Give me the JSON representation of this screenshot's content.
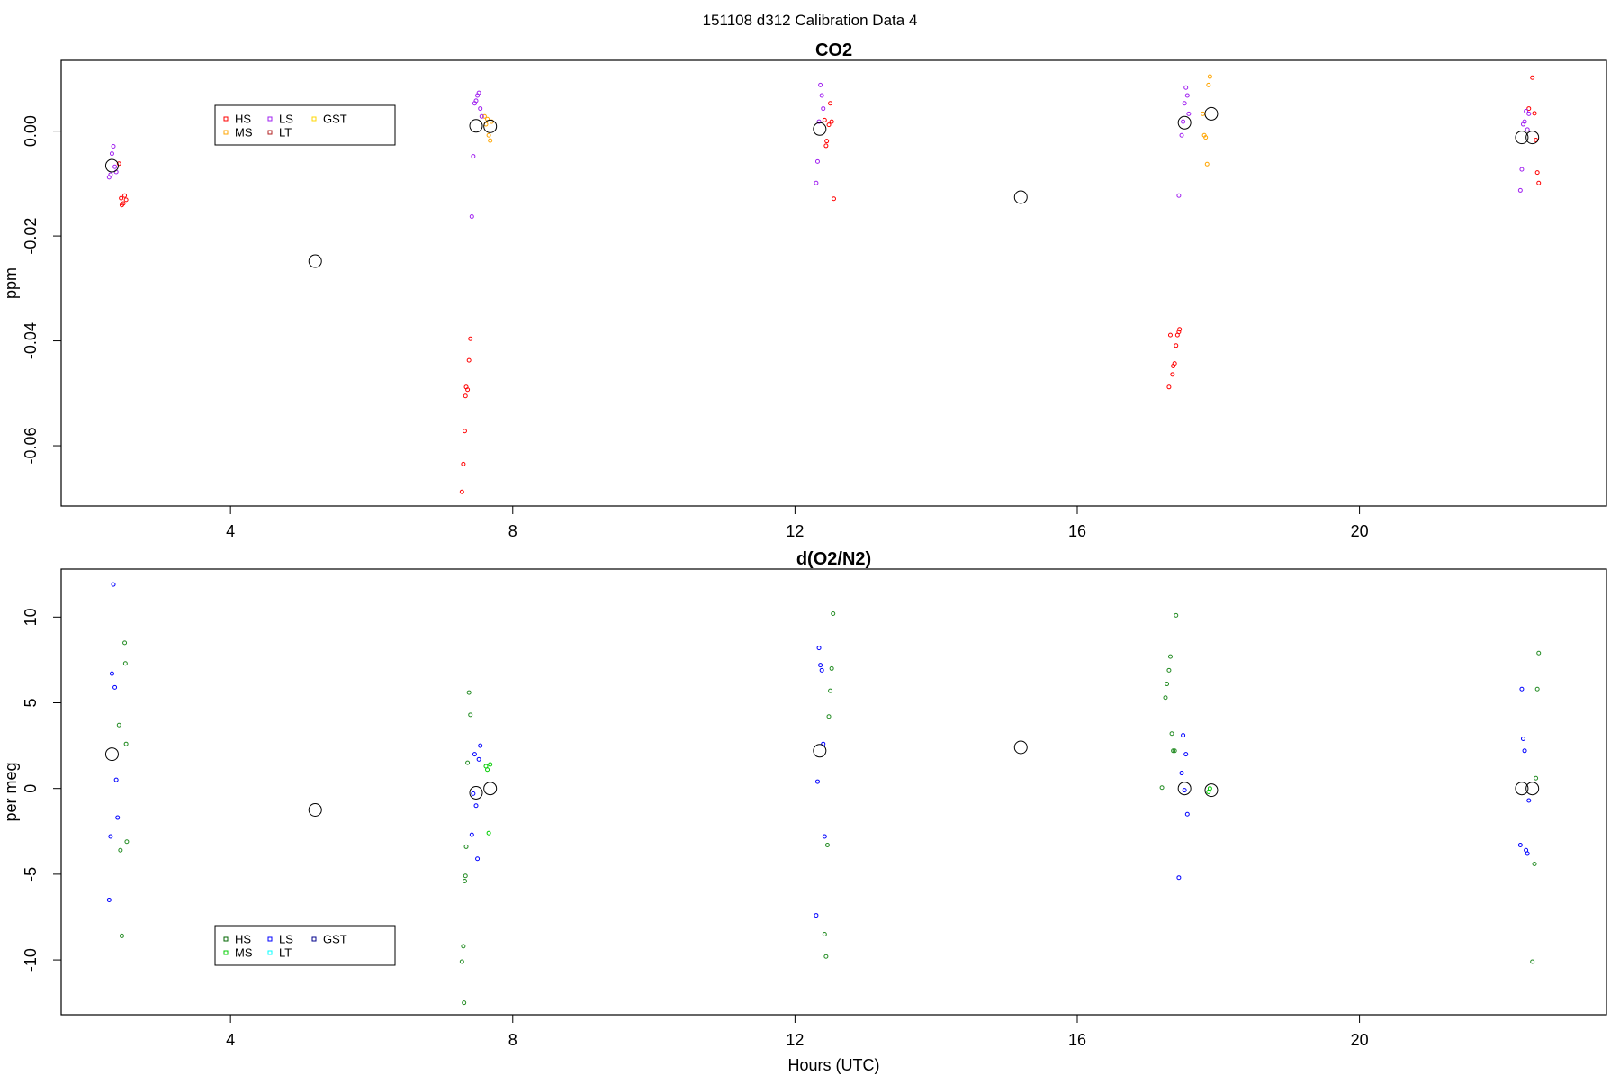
{
  "page_title": "151108   d312   Calibration Data 4",
  "colors": {
    "axis": "#000000",
    "open_circle": "#000000"
  },
  "chart_data": [
    {
      "type": "scatter",
      "title": "CO2",
      "xlabel": "",
      "ylabel": "ppm",
      "xlim": [
        1.6,
        23.5
      ],
      "ylim": [
        -0.0715,
        0.0135
      ],
      "x_ticks": [
        4,
        8,
        12,
        16,
        20
      ],
      "y_ticks": [
        -0.06,
        -0.04,
        -0.02,
        0.0
      ],
      "y_tick_labels": [
        "-0.06",
        "-0.04",
        "-0.02",
        "0.00"
      ],
      "legend": {
        "placement": "top-left",
        "entries": [
          {
            "label": "HS",
            "color": "#ff0000"
          },
          {
            "label": "MS",
            "color": "#ffa500"
          },
          {
            "label": "LS",
            "color": "#a020f0"
          },
          {
            "label": "LT",
            "color": "#b22222"
          },
          {
            "label": "GST",
            "color": "#ffd700"
          }
        ]
      },
      "series": [
        {
          "color": "#ff0000",
          "points": [
            [
              2.42,
              -0.0062
            ],
            [
              2.45,
              -0.0128
            ],
            [
              2.48,
              -0.0138
            ],
            [
              2.5,
              -0.0123
            ],
            [
              2.52,
              -0.0131
            ],
            [
              2.46,
              -0.0141
            ],
            [
              7.28,
              -0.0688
            ],
            [
              7.3,
              -0.0635
            ],
            [
              7.32,
              -0.0572
            ],
            [
              7.33,
              -0.0505
            ],
            [
              7.34,
              -0.0488
            ],
            [
              7.36,
              -0.0493
            ],
            [
              7.38,
              -0.0437
            ],
            [
              7.4,
              -0.0396
            ],
            [
              12.42,
              0.0021
            ],
            [
              12.44,
              -0.0028
            ],
            [
              12.45,
              -0.0019
            ],
            [
              12.48,
              0.0012
            ],
            [
              12.5,
              0.0053
            ],
            [
              12.52,
              0.0018
            ],
            [
              12.55,
              -0.0129
            ],
            [
              17.3,
              -0.0488
            ],
            [
              17.32,
              -0.0389
            ],
            [
              17.35,
              -0.0464
            ],
            [
              17.36,
              -0.0448
            ],
            [
              17.38,
              -0.0443
            ],
            [
              17.4,
              -0.0409
            ],
            [
              17.42,
              -0.0389
            ],
            [
              17.44,
              -0.0383
            ],
            [
              17.45,
              -0.0378
            ],
            [
              22.4,
              0.0043
            ],
            [
              22.45,
              0.0102
            ],
            [
              22.48,
              0.0034
            ],
            [
              22.5,
              -0.0017
            ],
            [
              22.52,
              -0.0079
            ],
            [
              22.54,
              -0.0099
            ]
          ]
        },
        {
          "color": "#ffa500",
          "points": [
            [
              7.6,
              0.0028
            ],
            [
              7.62,
              0.0013
            ],
            [
              7.64,
              0.0023
            ],
            [
              7.66,
              -0.0008
            ],
            [
              7.68,
              -0.0018
            ],
            [
              7.7,
              0.0018
            ],
            [
              17.78,
              0.0033
            ],
            [
              17.8,
              -0.0008
            ],
            [
              17.82,
              -0.0012
            ],
            [
              17.84,
              -0.0063
            ],
            [
              17.86,
              0.0088
            ],
            [
              17.88,
              0.0104
            ]
          ]
        },
        {
          "color": "#a020f0",
          "points": [
            [
              2.28,
              -0.0088
            ],
            [
              2.3,
              -0.0083
            ],
            [
              2.32,
              -0.0043
            ],
            [
              2.34,
              -0.0029
            ],
            [
              2.36,
              -0.0068
            ],
            [
              2.38,
              -0.0078
            ],
            [
              7.42,
              -0.0163
            ],
            [
              7.44,
              -0.0048
            ],
            [
              7.46,
              0.0053
            ],
            [
              7.48,
              0.0058
            ],
            [
              7.5,
              0.0068
            ],
            [
              7.52,
              0.0073
            ],
            [
              7.54,
              0.0043
            ],
            [
              7.56,
              0.0028
            ],
            [
              12.3,
              -0.0099
            ],
            [
              12.32,
              -0.0058
            ],
            [
              12.34,
              0.0018
            ],
            [
              12.36,
              0.0088
            ],
            [
              12.38,
              0.0068
            ],
            [
              12.4,
              0.0043
            ],
            [
              17.44,
              -0.0123
            ],
            [
              17.48,
              -0.0008
            ],
            [
              17.5,
              0.0018
            ],
            [
              17.52,
              0.0053
            ],
            [
              17.54,
              0.0083
            ],
            [
              17.56,
              0.0068
            ],
            [
              17.58,
              0.0033
            ],
            [
              22.28,
              -0.0113
            ],
            [
              22.3,
              -0.0073
            ],
            [
              22.32,
              0.0013
            ],
            [
              22.34,
              0.0018
            ],
            [
              22.36,
              0.0038
            ],
            [
              22.38,
              0.0003
            ],
            [
              22.4,
              0.0033
            ]
          ]
        },
        {
          "color": "#b22222",
          "points": []
        },
        {
          "color": "#ffd700",
          "points": []
        }
      ],
      "open_circles": [
        [
          2.32,
          -0.0066
        ],
        [
          5.2,
          -0.0248
        ],
        [
          7.48,
          0.001
        ],
        [
          7.68,
          0.0009
        ],
        [
          12.35,
          0.0004
        ],
        [
          15.2,
          -0.0126
        ],
        [
          17.52,
          0.0016
        ],
        [
          17.9,
          0.0033
        ],
        [
          22.3,
          -0.0012
        ],
        [
          22.45,
          -0.0012
        ]
      ]
    },
    {
      "type": "scatter",
      "title": "d(O2/N2)",
      "xlabel": "Hours (UTC)",
      "ylabel": "per meg",
      "xlim": [
        1.6,
        23.5
      ],
      "ylim": [
        -13.2,
        12.8
      ],
      "x_ticks": [
        4,
        8,
        12,
        16,
        20
      ],
      "y_ticks": [
        -10,
        -5,
        0,
        5,
        10
      ],
      "y_tick_labels": [
        "-10",
        "-5",
        "0",
        "5",
        "10"
      ],
      "legend": {
        "placement": "bottom-left",
        "entries": [
          {
            "label": "HS",
            "color": "#006400"
          },
          {
            "label": "MS",
            "color": "#00cd00"
          },
          {
            "label": "LS",
            "color": "#0000ff"
          },
          {
            "label": "LT",
            "color": "#00ffff"
          },
          {
            "label": "GST",
            "color": "#00008b"
          }
        ]
      },
      "series": [
        {
          "color": "#228b22",
          "points": [
            [
              2.42,
              3.7
            ],
            [
              2.44,
              -3.6
            ],
            [
              2.46,
              -8.6
            ],
            [
              2.5,
              8.5
            ],
            [
              2.51,
              7.3
            ],
            [
              2.52,
              2.6
            ],
            [
              2.53,
              -3.1
            ],
            [
              7.28,
              -10.1
            ],
            [
              7.3,
              -9.2
            ],
            [
              7.31,
              -12.5
            ],
            [
              7.32,
              -5.4
            ],
            [
              7.33,
              -5.1
            ],
            [
              7.34,
              -3.4
            ],
            [
              7.36,
              1.5
            ],
            [
              7.38,
              5.6
            ],
            [
              7.4,
              4.3
            ],
            [
              12.42,
              -8.5
            ],
            [
              12.44,
              -9.8
            ],
            [
              12.46,
              -3.3
            ],
            [
              12.48,
              4.2
            ],
            [
              12.5,
              5.7
            ],
            [
              12.52,
              7.0
            ],
            [
              12.54,
              10.2
            ],
            [
              17.2,
              0.05
            ],
            [
              17.25,
              5.3
            ],
            [
              17.27,
              6.1
            ],
            [
              17.3,
              6.9
            ],
            [
              17.32,
              7.7
            ],
            [
              17.34,
              3.2
            ],
            [
              17.36,
              2.2
            ],
            [
              17.38,
              2.2
            ],
            [
              17.4,
              10.1
            ],
            [
              22.45,
              -10.1
            ],
            [
              22.48,
              -4.4
            ],
            [
              22.5,
              0.6
            ],
            [
              22.52,
              5.8
            ],
            [
              22.54,
              7.9
            ]
          ]
        },
        {
          "color": "#00cd00",
          "points": [
            [
              7.62,
              1.3
            ],
            [
              7.64,
              1.1
            ],
            [
              7.66,
              -2.6
            ],
            [
              7.68,
              1.4
            ],
            [
              17.86,
              -0.2
            ],
            [
              17.88,
              0.0
            ]
          ]
        },
        {
          "color": "#0000ff",
          "points": [
            [
              2.28,
              -6.5
            ],
            [
              2.3,
              -2.8
            ],
            [
              2.32,
              6.7
            ],
            [
              2.34,
              11.9
            ],
            [
              2.36,
              5.9
            ],
            [
              2.38,
              0.5
            ],
            [
              2.4,
              -1.7
            ],
            [
              7.42,
              -2.7
            ],
            [
              7.44,
              -0.3
            ],
            [
              7.46,
              2.0
            ],
            [
              7.48,
              -1.0
            ],
            [
              7.5,
              -4.1
            ],
            [
              7.52,
              1.7
            ],
            [
              7.54,
              2.5
            ],
            [
              12.3,
              -7.4
            ],
            [
              12.32,
              0.4
            ],
            [
              12.34,
              8.2
            ],
            [
              12.36,
              7.2
            ],
            [
              12.38,
              6.9
            ],
            [
              12.4,
              2.6
            ],
            [
              12.42,
              -2.8
            ],
            [
              17.44,
              -5.2
            ],
            [
              17.48,
              0.9
            ],
            [
              17.5,
              3.1
            ],
            [
              17.52,
              -0.1
            ],
            [
              17.54,
              2.0
            ],
            [
              17.56,
              -1.5
            ],
            [
              22.28,
              -3.3
            ],
            [
              22.3,
              5.8
            ],
            [
              22.32,
              2.9
            ],
            [
              22.34,
              2.2
            ],
            [
              22.36,
              -3.6
            ],
            [
              22.38,
              -3.8
            ],
            [
              22.4,
              -0.7
            ]
          ]
        },
        {
          "color": "#00ffff",
          "points": []
        },
        {
          "color": "#00008b",
          "points": []
        }
      ],
      "open_circles": [
        [
          2.32,
          2.0
        ],
        [
          5.2,
          -1.25
        ],
        [
          7.48,
          -0.25
        ],
        [
          7.68,
          0.0
        ],
        [
          12.35,
          2.2
        ],
        [
          15.2,
          2.4
        ],
        [
          17.52,
          0.0
        ],
        [
          17.9,
          -0.1
        ],
        [
          22.3,
          0.0
        ],
        [
          22.45,
          0.0
        ]
      ]
    }
  ]
}
